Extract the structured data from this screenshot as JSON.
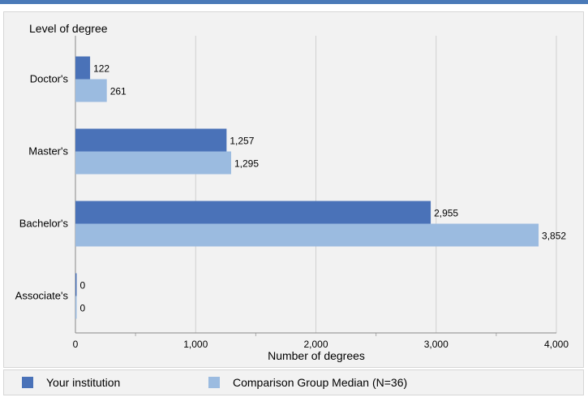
{
  "chart_data": {
    "type": "bar",
    "orientation": "horizontal",
    "y_title": "Level of degree",
    "xlabel": "Number of degrees",
    "categories": [
      "Doctor's",
      "Master's",
      "Bachelor's",
      "Associate's"
    ],
    "xlim": [
      0,
      4000
    ],
    "x_ticks": [
      0,
      1000,
      2000,
      3000,
      4000
    ],
    "x_tick_labels": [
      "0",
      "1,000",
      "2,000",
      "3,000",
      "4,000"
    ],
    "grid": true,
    "series": [
      {
        "name": "Your institution",
        "color": "#4a72b8",
        "values": [
          122,
          1257,
          2955,
          0
        ],
        "value_labels": [
          "122",
          "1,257",
          "2,955",
          "0"
        ]
      },
      {
        "name": "Comparison Group Median (N=36)",
        "color": "#9bbbe0",
        "values": [
          261,
          1295,
          3852,
          0
        ],
        "value_labels": [
          "261",
          "1,295",
          "3,852",
          "0"
        ]
      }
    ],
    "legend": {
      "position": "bottom"
    }
  }
}
